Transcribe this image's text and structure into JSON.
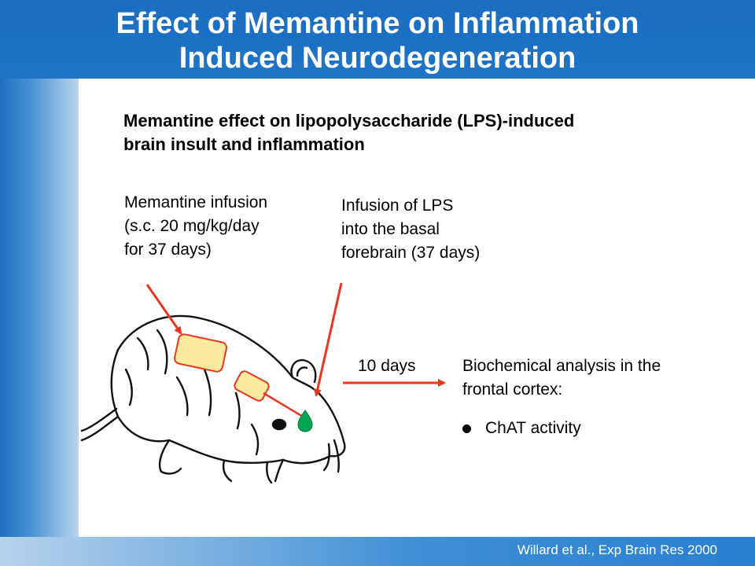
{
  "slide": {
    "title_line1": "Effect of Memantine on Inflammation",
    "title_line2": "Induced Neurodegeneration",
    "subtitle_line1": "Memantine effect on lipopolysaccharide (LPS)-induced",
    "subtitle_line2": "brain insult and inflammation",
    "memantine_label": [
      "Memantine infusion",
      "(s.c. 20 mg/kg/day",
      "for 37 days)"
    ],
    "lps_label": [
      "Infusion of LPS",
      "into the basal",
      "forebrain (37 days)"
    ],
    "days_label": "10 days",
    "analysis_label": [
      "Biochemical analysis in the",
      "frontal cortex:"
    ],
    "bullet_item": "ChAT activity",
    "citation": "Willard et al., Exp Brain Res 2000"
  },
  "colors": {
    "header_blue": "#1f73c4",
    "arrow_red": "#e8361f",
    "pump_fill": "#fce9a0",
    "pump_stroke": "#e8361f",
    "drop_green": "#00a651"
  },
  "icons": [
    "rat-illustration-icon",
    "drop-icon",
    "bullet-icon"
  ]
}
